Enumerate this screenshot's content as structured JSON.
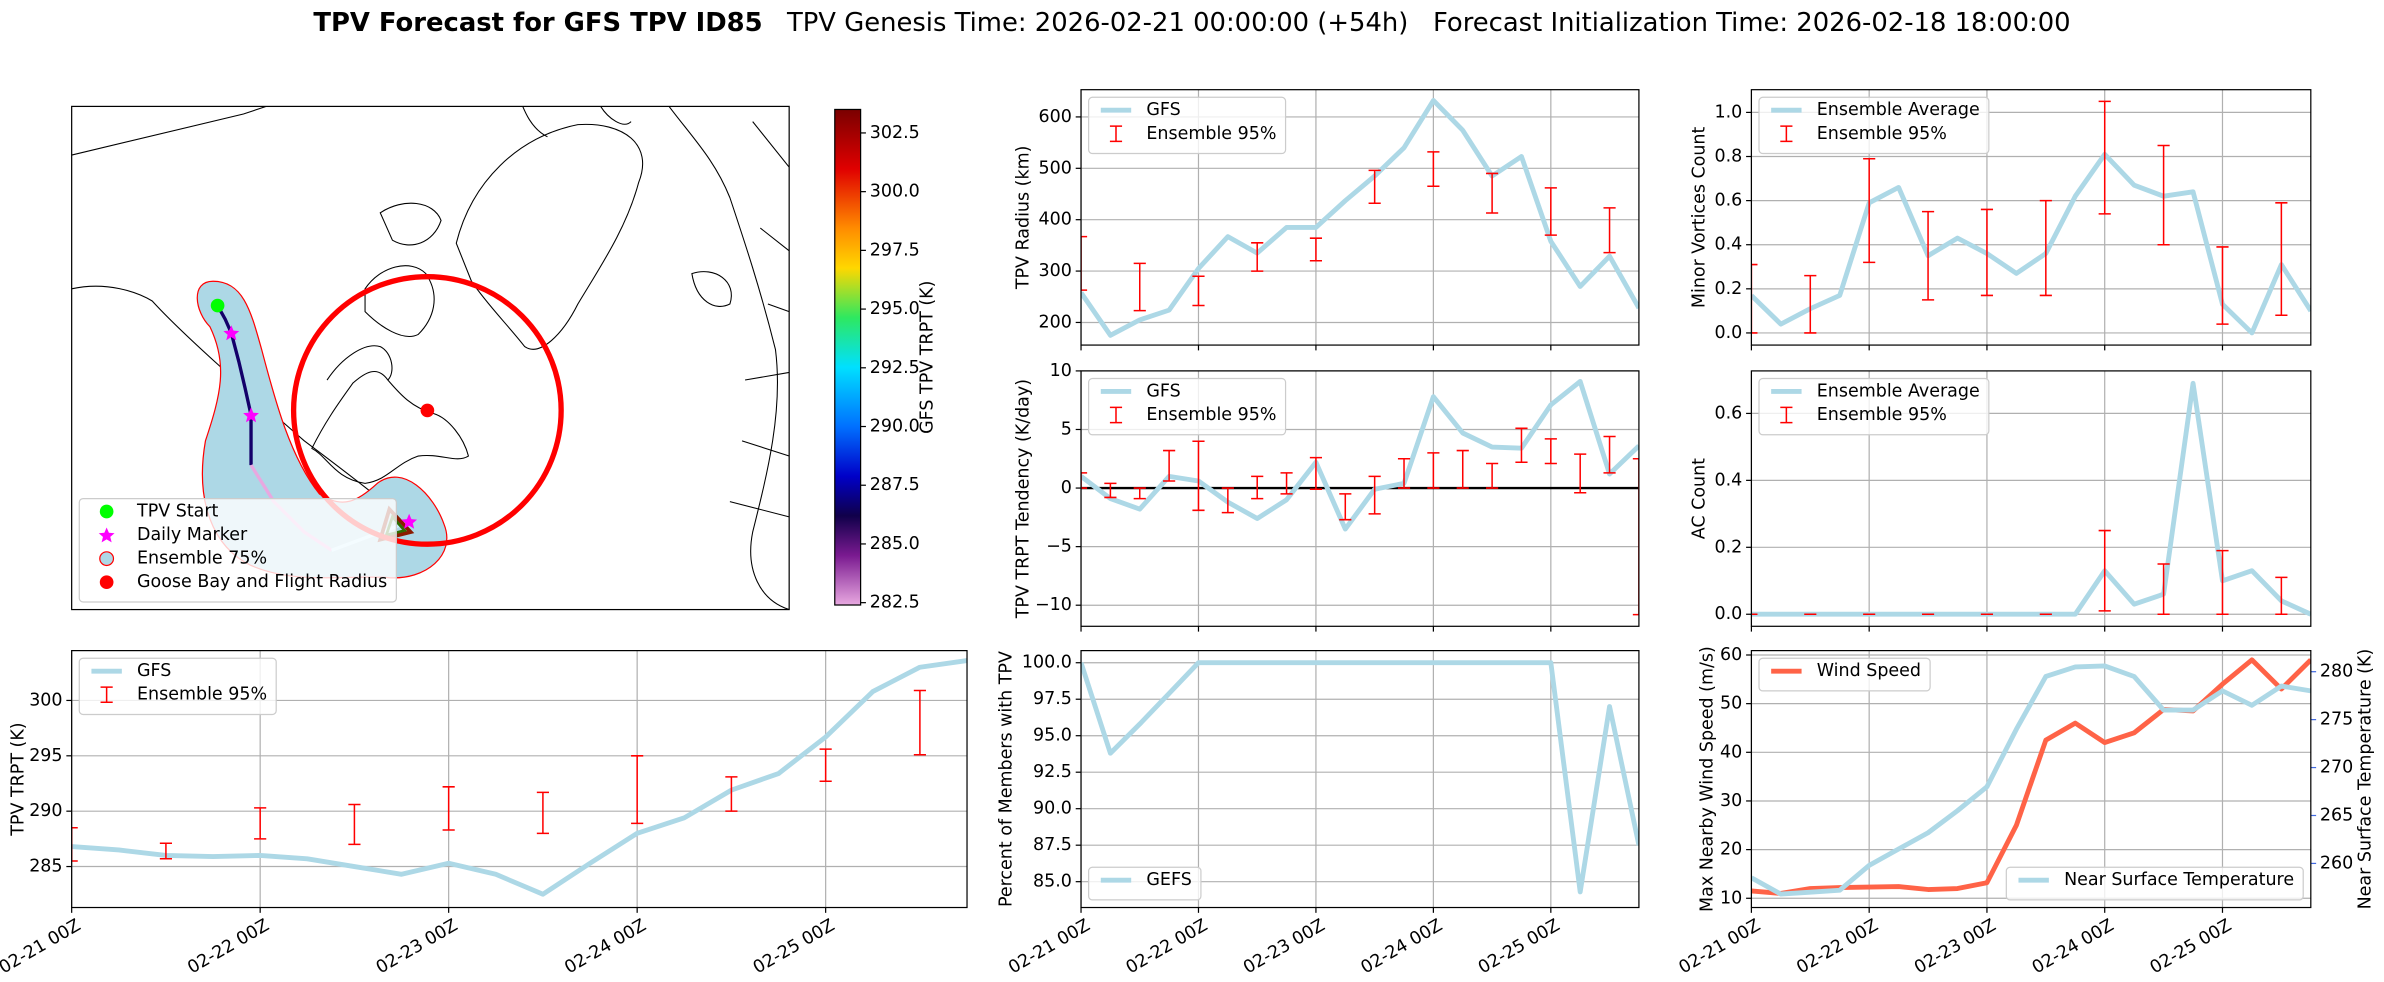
{
  "title": "TPV Forecast for GFS TPV ID85",
  "subtitle": "TPV Genesis Time: 2026-02-21 00:00:00 (+54h)   Forecast Initialization Time: 2026-02-18 18:00:00",
  "chart_data": [
    {
      "type": "map",
      "colorbar_label": "GFS TPV TRPT (K)",
      "colorbar_lim": [
        282.4,
        303.5
      ],
      "colorbar_ticks": [
        282.5,
        {
          "value": 285,
          "label": "285.0"
        },
        287.5,
        {
          "value": 290,
          "label": "290.0"
        },
        292.5,
        {
          "value": 295,
          "label": "295.0"
        },
        297.5,
        {
          "value": 300,
          "label": "300.0"
        },
        302.5
      ],
      "legend_entries": [
        "TPV Start",
        "Daily Marker",
        "Ensemble 75%",
        "Goose Bay and Flight Radius"
      ],
      "legend": "lower left"
    },
    {
      "type": "line",
      "ylabel": "TPV TRPT (K)",
      "xlim": [
        0,
        114
      ],
      "xticks": [
        {
          "value": 0,
          "label": "02-21 00Z"
        },
        {
          "value": 24,
          "label": "02-22 00Z"
        },
        {
          "value": 48,
          "label": "02-23 00Z"
        },
        {
          "value": 72,
          "label": "02-24 00Z"
        },
        {
          "value": 96,
          "label": "02-25 00Z"
        }
      ],
      "ylim": [
        281.3,
        304.5
      ],
      "yticks": [
        285,
        290,
        295,
        300
      ],
      "grid": true,
      "legend": "upper left",
      "x": [
        0,
        6,
        12,
        18,
        24,
        30,
        36,
        42,
        48,
        54,
        60,
        66,
        72,
        78,
        84,
        90,
        96,
        102,
        108,
        114
      ],
      "series": [
        {
          "name": "GFS",
          "color": "#add8e6",
          "values": [
            286.8,
            286.5,
            286.0,
            285.9,
            286.0,
            285.7,
            285.0,
            284.3,
            285.3,
            284.3,
            282.5,
            285.3,
            288.0,
            289.4,
            291.9,
            293.4,
            296.7,
            300.8,
            303.0,
            303.6
          ]
        },
        {
          "name": "Ensemble 95%",
          "type": "errorbar",
          "color": "#ff0000",
          "x": [
            0,
            12,
            24,
            36,
            48,
            60,
            72,
            84,
            96,
            108
          ],
          "low": [
            285.5,
            285.7,
            287.5,
            287.0,
            288.3,
            288.0,
            288.9,
            290.0,
            292.7,
            295.1
          ],
          "high": [
            288.5,
            287.1,
            290.3,
            290.6,
            292.2,
            291.7,
            295.0,
            293.1,
            295.6,
            300.9
          ]
        }
      ]
    },
    {
      "type": "line",
      "ylabel": "TPV Radius (km)",
      "xlim": [
        0,
        114
      ],
      "xticks": [
        0,
        24,
        48,
        72,
        96
      ],
      "xtick_labels": false,
      "ylim": [
        156,
        653
      ],
      "yticks": [
        200,
        300,
        400,
        500,
        600
      ],
      "grid": true,
      "legend": "upper left",
      "x": [
        0,
        6,
        12,
        18,
        24,
        30,
        36,
        42,
        48,
        54,
        60,
        66,
        72,
        78,
        84,
        90,
        96,
        102,
        108,
        114
      ],
      "series": [
        {
          "name": "GFS",
          "color": "#add8e6",
          "values": [
            258,
            175,
            205,
            224,
            305,
            367,
            335,
            385,
            385,
            437,
            485,
            540,
            632,
            574,
            485,
            523,
            358,
            270,
            329,
            228
          ]
        },
        {
          "name": "Ensemble 95%",
          "type": "errorbar",
          "color": "#ff0000",
          "x": [
            0,
            12,
            24,
            36,
            48,
            60,
            72,
            84,
            96,
            108
          ],
          "low": [
            263,
            223,
            233,
            300,
            320,
            432,
            465,
            413,
            370,
            336
          ],
          "high": [
            367,
            315,
            290,
            355,
            364,
            496,
            532,
            490,
            462,
            423
          ]
        }
      ]
    },
    {
      "type": "line",
      "ylabel": "TPV TRPT Tendency (K/day)",
      "xlim": [
        0,
        114
      ],
      "xticks": [
        0,
        24,
        48,
        72,
        96
      ],
      "xtick_labels": false,
      "ylim": [
        -11.8,
        10
      ],
      "yticks": [
        {
          "value": -10,
          "label": "−10"
        },
        {
          "value": -5,
          "label": "−5"
        },
        0,
        5,
        10
      ],
      "grid": true,
      "zero_line": true,
      "legend": "upper left",
      "x": [
        0,
        6,
        12,
        18,
        24,
        30,
        36,
        42,
        48,
        54,
        60,
        66,
        72,
        78,
        84,
        90,
        96,
        102,
        108,
        114
      ],
      "series": [
        {
          "name": "GFS",
          "color": "#add8e6",
          "values": [
            1.0,
            -0.9,
            -1.8,
            1.0,
            0.6,
            -1.2,
            -2.6,
            -1.0,
            2.2,
            -3.5,
            -0.1,
            0.4,
            7.8,
            4.7,
            3.5,
            3.4,
            7.1,
            9.1,
            1.2,
            3.6
          ]
        },
        {
          "name": "Ensemble 95%",
          "type": "errorbar",
          "color": "#ff0000",
          "x": [
            0,
            6,
            12,
            18,
            24,
            30,
            36,
            42,
            48,
            54,
            60,
            66,
            72,
            78,
            84,
            90,
            96,
            102,
            108,
            114
          ],
          "low": [
            0,
            -0.8,
            -0.9,
            0.6,
            -1.9,
            -2.1,
            -0.9,
            -0.5,
            -0.1,
            -2.7,
            -2.2,
            0,
            0,
            0,
            0,
            2.2,
            2.1,
            -0.4,
            1.3,
            -10.8
          ],
          "high": [
            1.3,
            0.4,
            0,
            3.2,
            4.0,
            0,
            1.0,
            1.3,
            2.6,
            -0.5,
            1.0,
            2.5,
            3.0,
            3.2,
            2.1,
            5.1,
            4.2,
            2.9,
            4.4,
            2.5
          ]
        }
      ]
    },
    {
      "type": "line",
      "ylabel": "Percent of Members with TPV",
      "xlim": [
        0,
        114
      ],
      "xticks": [
        {
          "value": 0,
          "label": "02-21 00Z"
        },
        {
          "value": 24,
          "label": "02-22 00Z"
        },
        {
          "value": 48,
          "label": "02-23 00Z"
        },
        {
          "value": 72,
          "label": "02-24 00Z"
        },
        {
          "value": 96,
          "label": "02-25 00Z"
        }
      ],
      "ylim": [
        83.23,
        100.83
      ],
      "yticks": [
        {
          "value": 85,
          "label": "85.0"
        },
        87.5,
        {
          "value": 90,
          "label": "90.0"
        },
        92.5,
        {
          "value": 95,
          "label": "95.0"
        },
        97.5,
        {
          "value": 100,
          "label": "100.0"
        }
      ],
      "grid": true,
      "legend": "lower left",
      "x": [
        0,
        6,
        12,
        18,
        24,
        30,
        36,
        42,
        48,
        54,
        60,
        66,
        72,
        78,
        84,
        90,
        96,
        102,
        108,
        114
      ],
      "series": [
        {
          "name": "GEFS",
          "color": "#add8e6",
          "values": [
            100,
            93.8,
            95.8,
            97.9,
            100,
            100,
            100,
            100,
            100,
            100,
            100,
            100,
            100,
            100,
            100,
            100,
            100,
            84.3,
            97.0,
            87.5
          ]
        }
      ]
    },
    {
      "type": "line",
      "ylabel": "Minor Vortices Count",
      "xlim": [
        0,
        114
      ],
      "xticks": [
        0,
        24,
        48,
        72,
        96
      ],
      "xtick_labels": false,
      "ylim": [
        -0.055,
        1.103
      ],
      "yticks": [
        {
          "value": 0,
          "label": "0.0"
        },
        0.2,
        0.4,
        0.6,
        0.8,
        {
          "value": 1,
          "label": "1.0"
        }
      ],
      "grid": true,
      "legend": "upper left",
      "x": [
        0,
        6,
        12,
        18,
        24,
        30,
        36,
        42,
        48,
        54,
        60,
        66,
        72,
        78,
        84,
        90,
        96,
        102,
        108,
        114
      ],
      "series": [
        {
          "name": "Ensemble Average",
          "color": "#add8e6",
          "values": [
            0.17,
            0.04,
            0.11,
            0.17,
            0.59,
            0.66,
            0.35,
            0.43,
            0.36,
            0.27,
            0.36,
            0.62,
            0.81,
            0.67,
            0.62,
            0.64,
            0.13,
            0.0,
            0.31,
            0.1
          ]
        },
        {
          "name": "Ensemble 95%",
          "type": "errorbar",
          "color": "#ff0000",
          "x": [
            0,
            12,
            24,
            36,
            48,
            60,
            72,
            84,
            96,
            108
          ],
          "low": [
            0,
            0,
            0.32,
            0.15,
            0.17,
            0.17,
            0.54,
            0.4,
            0.04,
            0.08
          ],
          "high": [
            0.31,
            0.26,
            0.79,
            0.55,
            0.56,
            0.6,
            1.05,
            0.85,
            0.39,
            0.59
          ]
        }
      ]
    },
    {
      "type": "line",
      "ylabel": "AC Count",
      "xlim": [
        0,
        114
      ],
      "xticks": [
        0,
        24,
        48,
        72,
        96
      ],
      "xtick_labels": false,
      "ylim": [
        -0.036,
        0.727
      ],
      "yticks": [
        {
          "value": 0,
          "label": "0.0"
        },
        0.2,
        0.4,
        0.6
      ],
      "grid": true,
      "legend": "upper left",
      "x": [
        0,
        6,
        12,
        18,
        24,
        30,
        36,
        42,
        48,
        54,
        60,
        66,
        72,
        78,
        84,
        90,
        96,
        102,
        108,
        114
      ],
      "series": [
        {
          "name": "Ensemble Average",
          "color": "#add8e6",
          "values": [
            0,
            0,
            0,
            0,
            0,
            0,
            0,
            0,
            0,
            0,
            0,
            0,
            0.13,
            0.03,
            0.06,
            0.69,
            0.1,
            0.13,
            0.04,
            0
          ]
        },
        {
          "name": "Ensemble 95%",
          "type": "errorbar",
          "color": "#ff0000",
          "x": [
            0,
            12,
            24,
            36,
            48,
            60,
            72,
            84,
            96,
            108
          ],
          "low": [
            0,
            0,
            0,
            0,
            0,
            0,
            0.01,
            0,
            0,
            0
          ],
          "high": [
            0,
            0,
            0,
            0,
            0,
            0,
            0.25,
            0.15,
            0.19,
            0.11
          ]
        }
      ]
    },
    {
      "type": "line",
      "ylabel": "Max Nearby Wind Speed (m/s)",
      "ylabel_color": "#ff6347",
      "y2label": "Near Surface Temperature (K)",
      "y2label_color": "#4169e1",
      "xlim": [
        0,
        114
      ],
      "xticks": [
        {
          "value": 0,
          "label": "02-21 00Z"
        },
        {
          "value": 24,
          "label": "02-22 00Z"
        },
        {
          "value": 48,
          "label": "02-23 00Z"
        },
        {
          "value": 72,
          "label": "02-24 00Z"
        },
        {
          "value": 96,
          "label": "02-25 00Z"
        }
      ],
      "ylim": [
        8.1,
        60.9
      ],
      "yticks": [
        10,
        20,
        30,
        40,
        50,
        60
      ],
      "y2lim": [
        255.4,
        282.2
      ],
      "y2ticks": [
        260,
        265,
        270,
        275,
        280
      ],
      "grid": true,
      "x": [
        0,
        6,
        12,
        18,
        24,
        30,
        36,
        42,
        48,
        54,
        60,
        66,
        72,
        78,
        84,
        90,
        96,
        102,
        108,
        114
      ],
      "series": [
        {
          "name": "Wind Speed",
          "color": "#ff6347",
          "legend": "upper left",
          "values": [
            11.5,
            11.0,
            12.0,
            12.2,
            12.3,
            12.4,
            11.8,
            12.0,
            13.2,
            25,
            42.5,
            46,
            42,
            44,
            48.8,
            48.5,
            54,
            59,
            53,
            59
          ]
        },
        {
          "name": "Near Surface Temperature",
          "color": "#add8e6",
          "axis": "y2",
          "legend": "lower right",
          "values": [
            258.5,
            256.8,
            257.0,
            257.2,
            259.8,
            261.5,
            263.2,
            265.5,
            268.0,
            274.0,
            279.5,
            280.5,
            280.6,
            279.5,
            276.0,
            276.0,
            278.0,
            276.5,
            278.5,
            278.0
          ]
        }
      ]
    }
  ]
}
